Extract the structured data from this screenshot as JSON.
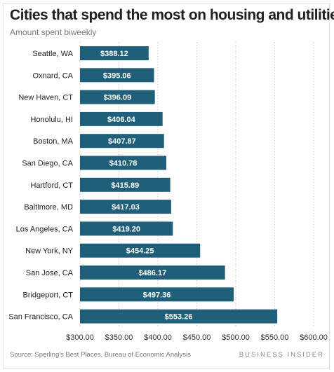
{
  "chart_data": {
    "type": "bar",
    "orientation": "horizontal",
    "title": "Cities that spend the most on housing and utilities",
    "subtitle": "Amount spent biweekly",
    "categories": [
      "Seattle, WA",
      "Oxnard, CA",
      "New Haven, CT",
      "Honolulu, HI",
      "Boston, MA",
      "San Diego, CA",
      "Hartford, CT",
      "Baltimore, MD",
      "Los Angeles, CA",
      "New York, NY",
      "San Jose, CA",
      "Bridgeport, CT",
      "San Francisco, CA"
    ],
    "values": [
      388.12,
      395.06,
      396.09,
      406.04,
      407.87,
      410.78,
      415.89,
      417.03,
      419.2,
      454.25,
      486.17,
      497.36,
      553.26
    ],
    "data_labels": [
      "$388.12",
      "$395.06",
      "$396.09",
      "$406.04",
      "$407.87",
      "$410.78",
      "$415.89",
      "$417.03",
      "$419.20",
      "$454.25",
      "$486.17",
      "$497.36",
      "$553.26"
    ],
    "xlim": [
      300,
      600
    ],
    "x_ticks": [
      300,
      350,
      400,
      450,
      500,
      550,
      600
    ],
    "x_tick_labels": [
      "$300.00",
      "$350.00",
      "$400.00",
      "$450.00",
      "$500.00",
      "$550.00",
      "$600.00"
    ],
    "grid": "vertical dotted",
    "bar_color": "#1f5f7a",
    "label_color": "#ffffff"
  },
  "footer": {
    "source": "Source: Sperling's Best Places, Bureau of Economic Analysis",
    "brand": "BUSINESS INSIDER"
  }
}
